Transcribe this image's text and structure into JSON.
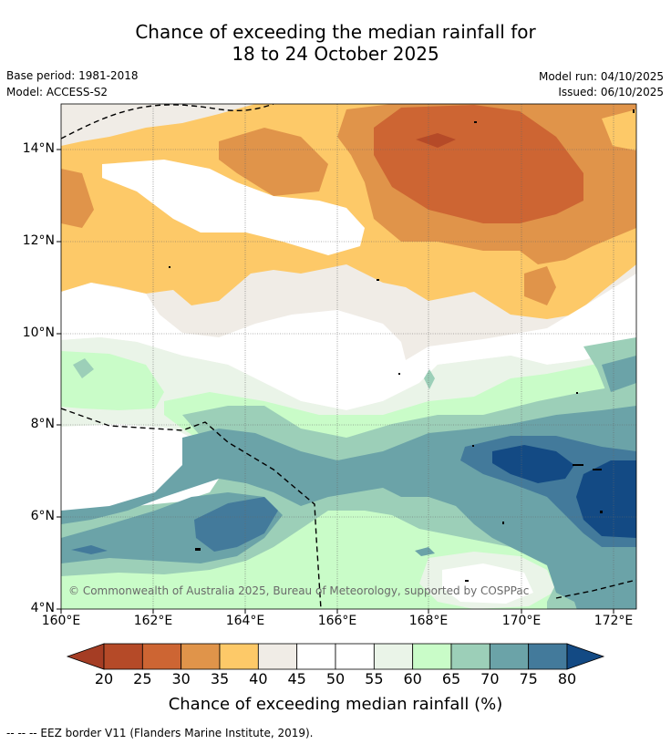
{
  "header": {
    "title_line1": "Chance of exceeding the median rainfall for",
    "title_line2": "18 to 24 October 2025",
    "base_period": "Base period: 1981-2018",
    "model": "Model: ACCESS-S2",
    "model_run": "Model run: 04/10/2025",
    "issued": "Issued: 06/10/2025"
  },
  "map": {
    "lat_ticks": [
      "14°N",
      "12°N",
      "10°N",
      "8°N",
      "6°N",
      "4°N"
    ],
    "lon_ticks": [
      "160°E",
      "162°E",
      "164°E",
      "166°E",
      "168°E",
      "170°E",
      "172°E"
    ],
    "copyright": "© Commonwealth of Australia 2025, Bureau of Meteorology, supported by COSPPac"
  },
  "legend": {
    "title": "Chance of exceeding median rainfall (%)",
    "ticks": [
      "20",
      "25",
      "30",
      "35",
      "40",
      "45",
      "50",
      "55",
      "60",
      "65",
      "70",
      "75",
      "80"
    ],
    "colors": [
      "#a53d24",
      "#b54a28",
      "#cd6533",
      "#e0944a",
      "#fdc968",
      "#f0ece6",
      "#ffffff",
      "#ffffff",
      "#eaf4e8",
      "#c9fcc8",
      "#9ccfb8",
      "#6ba3a8",
      "#437a9b",
      "#134a84"
    ]
  },
  "footnote": "--  --  -- EEZ border V11 (Flanders Marine Institute, 2019)."
}
